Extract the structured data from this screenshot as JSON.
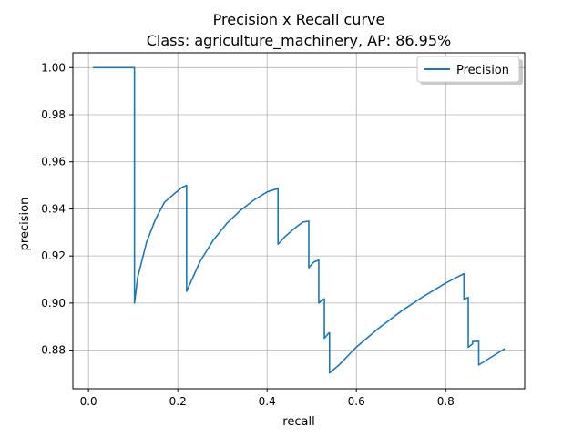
{
  "colors": {
    "series": "#1f77b4",
    "grid": "#b0b0b0",
    "axis": "#000000",
    "background": "#ffffff"
  },
  "chart_data": {
    "type": "line",
    "title": "Precision x Recall curve",
    "subtitle": "Class: agriculture_machinery, AP: 86.95%",
    "xlabel": "recall",
    "ylabel": "precision",
    "xlim": [
      -0.035,
      0.977
    ],
    "ylim": [
      0.8636,
      1.0063
    ],
    "xticks": [
      0.0,
      0.2,
      0.4,
      0.6,
      0.8
    ],
    "xtick_labels": [
      "0.0",
      "0.2",
      "0.4",
      "0.6",
      "0.8"
    ],
    "yticks": [
      0.88,
      0.9,
      0.92,
      0.94,
      0.96,
      0.98,
      1.0
    ],
    "ytick_labels": [
      "0.88",
      "0.90",
      "0.92",
      "0.94",
      "0.96",
      "0.98",
      "1.00"
    ],
    "grid": true,
    "legend": {
      "placement": "top-right",
      "entries": [
        "Precision"
      ]
    },
    "series": [
      {
        "name": "Precision",
        "x": [
          0.01,
          0.103,
          0.103,
          0.11,
          0.13,
          0.15,
          0.17,
          0.19,
          0.21,
          0.2197,
          0.2197,
          0.25,
          0.28,
          0.31,
          0.34,
          0.37,
          0.4,
          0.4245,
          0.4245,
          0.44,
          0.46,
          0.48,
          0.4934,
          0.4934,
          0.505,
          0.5157,
          0.5157,
          0.5245,
          0.5245,
          0.5283,
          0.5283,
          0.537,
          0.537,
          0.5399,
          0.5399,
          0.56,
          0.6,
          0.65,
          0.7,
          0.75,
          0.8,
          0.8409,
          0.8409,
          0.8506,
          0.8506,
          0.8603,
          0.8603,
          0.874,
          0.874,
          0.9,
          0.932
        ],
        "y": [
          1.0,
          1.0,
          0.9,
          0.9108,
          0.9258,
          0.9356,
          0.9428,
          0.9461,
          0.9492,
          0.95,
          0.905,
          0.9177,
          0.9269,
          0.9339,
          0.9393,
          0.9437,
          0.9472,
          0.9487,
          0.925,
          0.9282,
          0.9315,
          0.9344,
          0.9348,
          0.915,
          0.9175,
          0.9182,
          0.9,
          0.9015,
          0.9012,
          0.9018,
          0.885,
          0.887,
          0.8871,
          0.8874,
          0.8703,
          0.8735,
          0.8813,
          0.8893,
          0.8965,
          0.9028,
          0.9085,
          0.9125,
          0.9015,
          0.9024,
          0.8812,
          0.8827,
          0.8837,
          0.8838,
          0.8737,
          0.8768,
          0.8806
        ]
      }
    ]
  }
}
